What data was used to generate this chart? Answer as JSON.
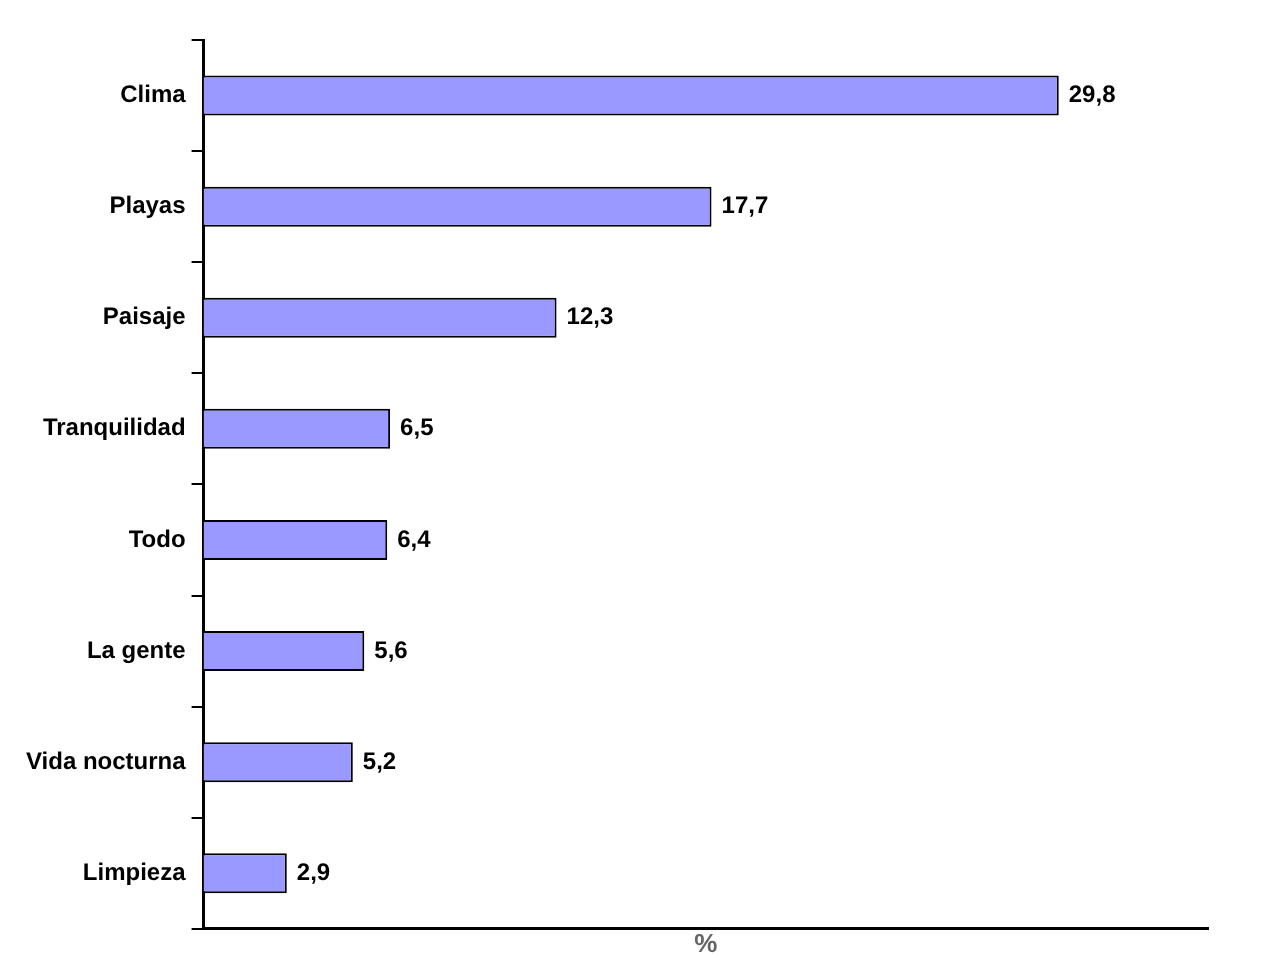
{
  "chart_data": {
    "type": "bar",
    "orientation": "horizontal",
    "xlabel": "%",
    "categories": [
      "Clima",
      "Playas",
      "Paisaje",
      "Tranquilidad",
      "Todo",
      "La gente",
      "Vida nocturna",
      "Limpieza"
    ],
    "values": [
      29.8,
      17.7,
      12.3,
      6.5,
      6.4,
      5.6,
      5.2,
      2.9
    ],
    "value_labels": [
      "29,8",
      "17,7",
      "12,3",
      "6,5",
      "6,4",
      "5,6",
      "5,2",
      "2,9"
    ],
    "color": "#9999ff",
    "grid": false,
    "legend": false,
    "tick_labels": "y"
  }
}
